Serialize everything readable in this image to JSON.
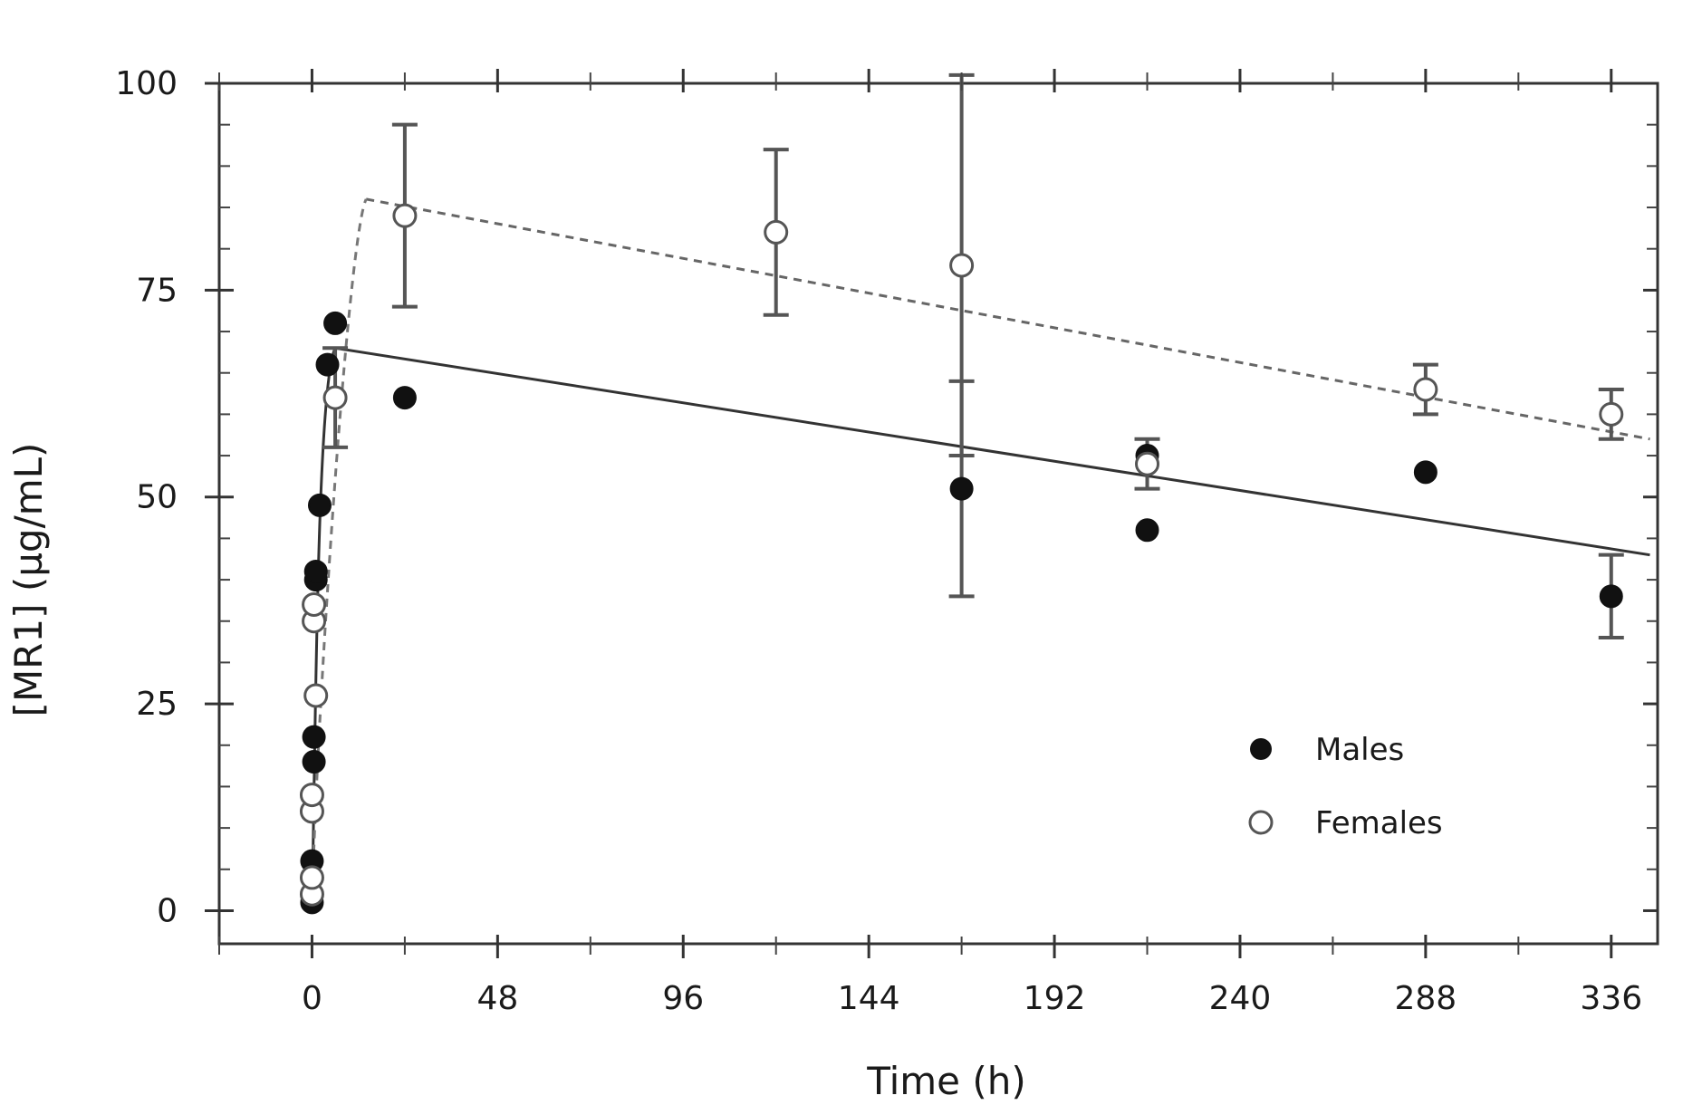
{
  "chart_data": {
    "type": "scatter",
    "title": "",
    "xlabel": "Time (h)",
    "ylabel": "[MR1] (µg/mL)",
    "xlim": [
      -24,
      348
    ],
    "ylim": [
      -4,
      100
    ],
    "xticks": [
      0,
      48,
      96,
      144,
      192,
      240,
      288,
      336
    ],
    "yticks": [
      0,
      25,
      50,
      75,
      100
    ],
    "grid": false,
    "legend": {
      "position": "bottom-right",
      "entries": [
        "Males",
        "Females"
      ]
    },
    "series": [
      {
        "name": "Males",
        "marker": "filled-circle",
        "color": "#111111",
        "points": [
          {
            "x": 0,
            "y": 1
          },
          {
            "x": 0,
            "y": 6
          },
          {
            "x": 0.5,
            "y": 18
          },
          {
            "x": 0.5,
            "y": 21
          },
          {
            "x": 1,
            "y": 40
          },
          {
            "x": 1,
            "y": 41
          },
          {
            "x": 2,
            "y": 49
          },
          {
            "x": 4,
            "y": 66
          },
          {
            "x": 6,
            "y": 71
          },
          {
            "x": 24,
            "y": 62
          },
          {
            "x": 168,
            "y": 51,
            "err": 13
          },
          {
            "x": 216,
            "y": 46
          },
          {
            "x": 216,
            "y": 55
          },
          {
            "x": 288,
            "y": 53
          },
          {
            "x": 336,
            "y": 38,
            "err": 5
          }
        ],
        "fit": [
          {
            "x": 6,
            "y": 68
          },
          {
            "x": 346,
            "y": 43
          }
        ]
      },
      {
        "name": "Females",
        "marker": "open-circle",
        "color": "#555555",
        "points": [
          {
            "x": 0,
            "y": 2
          },
          {
            "x": 0,
            "y": 4
          },
          {
            "x": 0,
            "y": 12
          },
          {
            "x": 0,
            "y": 14
          },
          {
            "x": 0.5,
            "y": 35
          },
          {
            "x": 0.5,
            "y": 37
          },
          {
            "x": 1,
            "y": 26
          },
          {
            "x": 6,
            "y": 62,
            "err": 6
          },
          {
            "x": 24,
            "y": 84,
            "err": 11
          },
          {
            "x": 120,
            "y": 82,
            "err": 10
          },
          {
            "x": 168,
            "y": 78,
            "err": 23
          },
          {
            "x": 216,
            "y": 54,
            "err": 3
          },
          {
            "x": 288,
            "y": 63,
            "err": 3
          },
          {
            "x": 336,
            "y": 60,
            "err": 3
          }
        ],
        "fit": [
          {
            "x": 14,
            "y": 86
          },
          {
            "x": 346,
            "y": 57
          }
        ]
      }
    ]
  }
}
